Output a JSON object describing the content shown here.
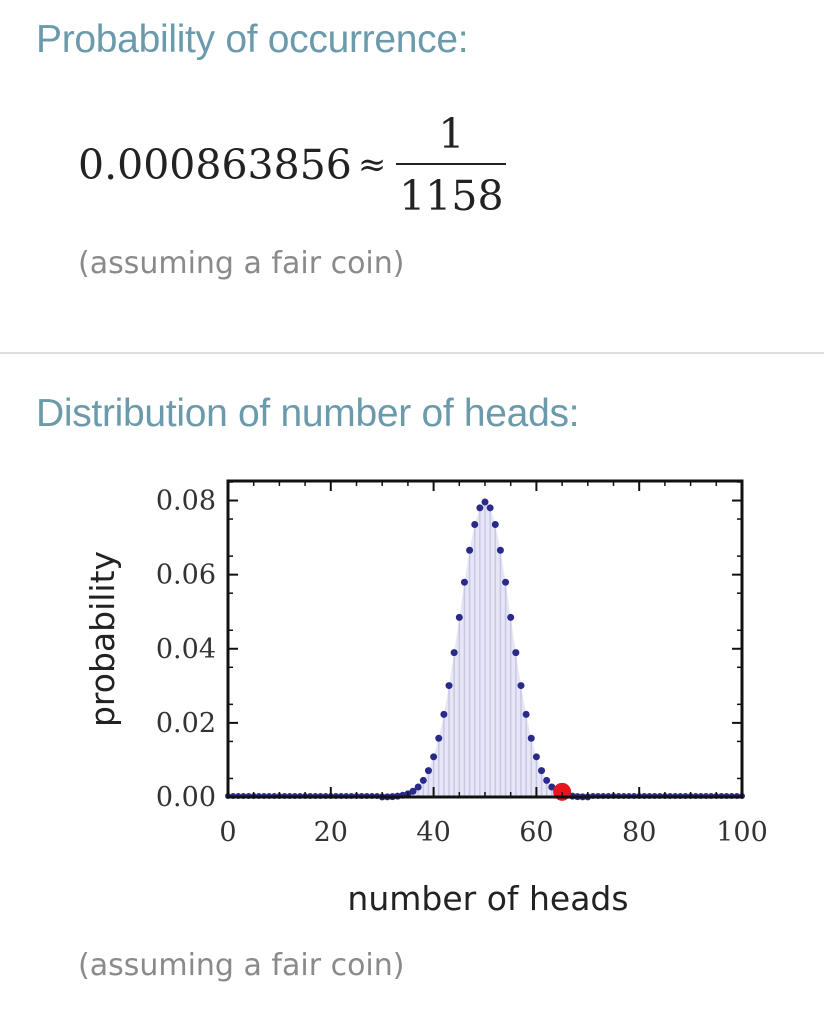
{
  "pod1": {
    "title": "Probability of occurrence:",
    "value": "0.000863856",
    "approx_symbol": "≈",
    "fraction_numerator": "1",
    "fraction_denominator": "1158",
    "note": "(assuming a fair coin)"
  },
  "pod2": {
    "title": "Distribution of number of heads:",
    "note": "(assuming a fair coin)"
  },
  "chart_data": {
    "type": "scatter",
    "title": "",
    "xlabel": "number of heads",
    "ylabel": "probability",
    "xlim": [
      0,
      100
    ],
    "ylim": [
      0,
      0.085
    ],
    "x_ticks": [
      "0",
      "20",
      "40",
      "60",
      "80",
      "100"
    ],
    "y_ticks": [
      "0.00",
      "0.02",
      "0.04",
      "0.06",
      "0.08"
    ],
    "grid": false,
    "series": [
      {
        "color": "#2a2a8a",
        "x": [
          30,
          31,
          32,
          33,
          34,
          35,
          36,
          37,
          38,
          39,
          40,
          41,
          42,
          43,
          44,
          45,
          46,
          47,
          48,
          49,
          50,
          51,
          52,
          53,
          54,
          55,
          56,
          57,
          58,
          59,
          60,
          61,
          62,
          63,
          64,
          65,
          66,
          67,
          68,
          69,
          70
        ],
        "y": [
          2e-05,
          5e-05,
          0.00011,
          0.00023,
          0.00046,
          0.00086,
          0.00156,
          0.0027,
          0.00447,
          0.00711,
          0.01084,
          0.01586,
          0.02229,
          0.03007,
          0.03895,
          0.04847,
          0.05796,
          0.06659,
          0.07353,
          0.07803,
          0.07959,
          0.07803,
          0.07353,
          0.06659,
          0.05796,
          0.04847,
          0.03895,
          0.03007,
          0.02229,
          0.01586,
          0.01084,
          0.00711,
          0.00447,
          0.0027,
          0.00156,
          0.00086,
          0.00046,
          0.00023,
          0.00011,
          5e-05,
          2e-05
        ]
      }
    ],
    "highlight": {
      "x": 65,
      "y": 0.00086,
      "color": "#e8141e"
    },
    "fill_color": "#e6e6f6",
    "stem_color": "#c8c8e6"
  }
}
